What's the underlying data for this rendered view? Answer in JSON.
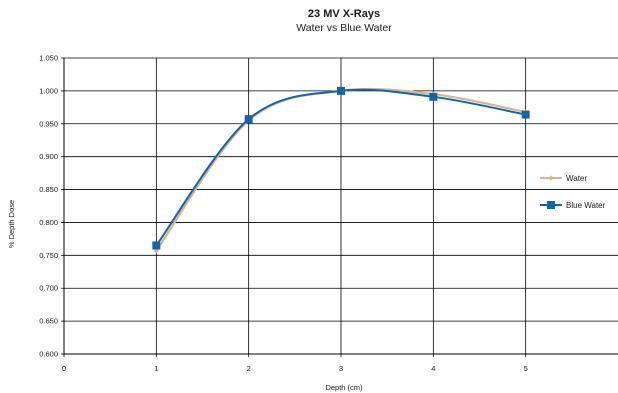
{
  "chart_data": {
    "type": "line",
    "title": "23 MV X-Rays",
    "subtitle": "Water vs Blue Water",
    "xlabel": "Depth (cm)",
    "ylabel": "% Depth Dose",
    "xlim": [
      0,
      6
    ],
    "ylim": [
      0.6,
      1.05
    ],
    "x_ticks": [
      "0",
      "1",
      "2",
      "3",
      "4",
      "5"
    ],
    "y_ticks": [
      "0.600",
      "0.650",
      "0.700",
      "0.750",
      "0.800",
      "0.850",
      "0.900",
      "0.950",
      "1.000",
      "1.050"
    ],
    "grid": true,
    "legend_position": "right",
    "series": [
      {
        "name": "Water",
        "color": "#d7b58b",
        "marker": "diamond",
        "x": [
          1,
          2,
          3,
          4,
          5
        ],
        "y": [
          0.757,
          0.955,
          1.0,
          0.995,
          0.968
        ]
      },
      {
        "name": "Blue Water",
        "color": "#1464a8",
        "marker": "square",
        "x": [
          1,
          2,
          3,
          4,
          5
        ],
        "y": [
          0.765,
          0.957,
          1.0,
          0.991,
          0.964
        ]
      }
    ]
  }
}
